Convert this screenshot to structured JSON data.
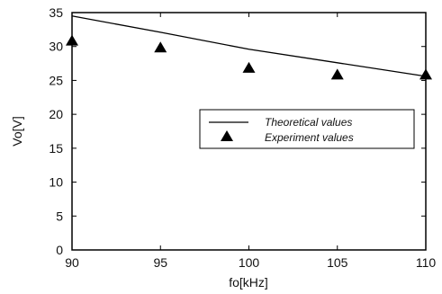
{
  "chart_data": {
    "type": "line",
    "xlabel": "fo[kHz]",
    "ylabel": "Vo[V]",
    "xlim": [
      90,
      110
    ],
    "ylim": [
      0,
      35
    ],
    "x_ticks": [
      "90",
      "95",
      "100",
      "105",
      "110"
    ],
    "y_ticks": [
      "0",
      "5",
      "10",
      "15",
      "20",
      "25",
      "30",
      "35"
    ],
    "grid": false,
    "legend_position": "right-middle",
    "series": [
      {
        "name": "Theoretical values",
        "style": "line",
        "x": [
          90,
          95,
          100,
          105,
          110
        ],
        "y": [
          34.5,
          32.1,
          29.6,
          27.6,
          25.6
        ]
      },
      {
        "name": "Experiment values",
        "style": "marker-triangle",
        "x": [
          90,
          95,
          100,
          105,
          110
        ],
        "y": [
          30.8,
          29.8,
          26.8,
          25.8,
          25.8
        ]
      }
    ]
  }
}
